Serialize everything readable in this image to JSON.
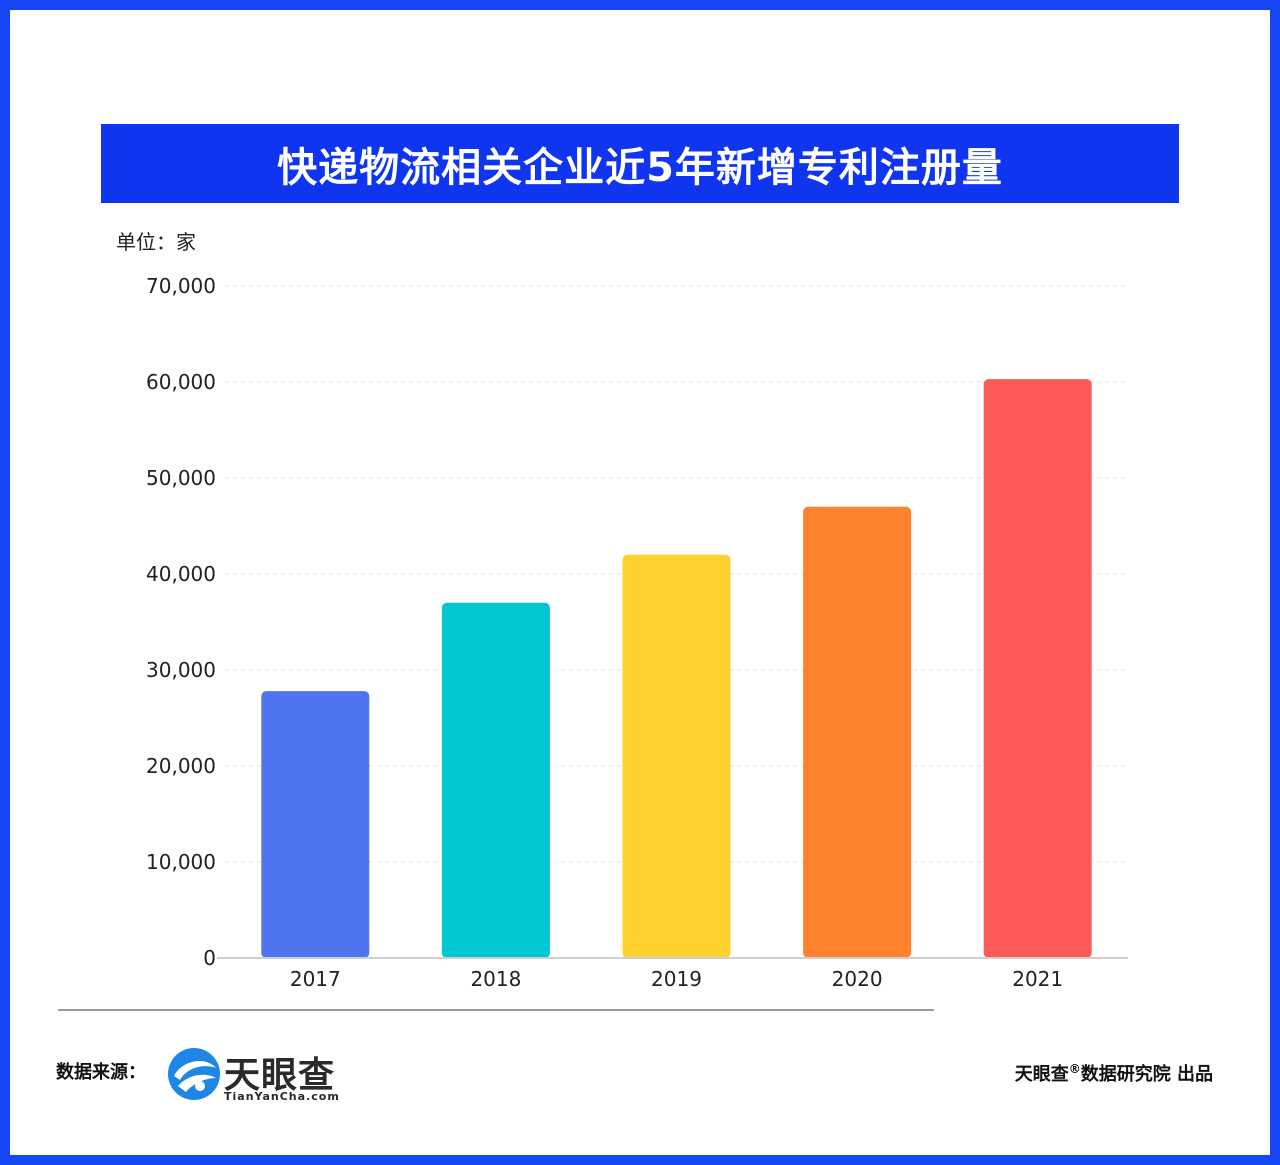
{
  "title": "快递物流相关企业近5年新增专利注册量",
  "unit_label": "单位：家",
  "footer": {
    "source_label": "数据来源：",
    "logo_name": "天眼查",
    "logo_domain": "TianYanCha.com",
    "credit_brand": "天眼查",
    "credit_mark": "®",
    "credit_rest": "数据研究院 出品"
  },
  "colors": {
    "frame": "#1746f5",
    "banner": "#0f35f0",
    "bars": [
      "#4f74f0",
      "#00c7d1",
      "#ffd02e",
      "#ff832c",
      "#ff5a5a"
    ]
  },
  "chart_data": {
    "type": "bar",
    "title": "快递物流相关企业近5年新增专利注册量",
    "ylabel": "单位：家",
    "xlabel": "",
    "categories": [
      "2017",
      "2018",
      "2019",
      "2020",
      "2021"
    ],
    "values": [
      27800,
      37000,
      42000,
      47000,
      60300
    ],
    "ylim": [
      0,
      70000
    ],
    "yticks": [
      0,
      10000,
      20000,
      30000,
      40000,
      50000,
      60000,
      70000
    ],
    "ytick_labels": [
      "0",
      "10,000",
      "20,000",
      "30,000",
      "40,000",
      "50,000",
      "60,000",
      "70,000"
    ],
    "grid": true,
    "legend": "none"
  }
}
